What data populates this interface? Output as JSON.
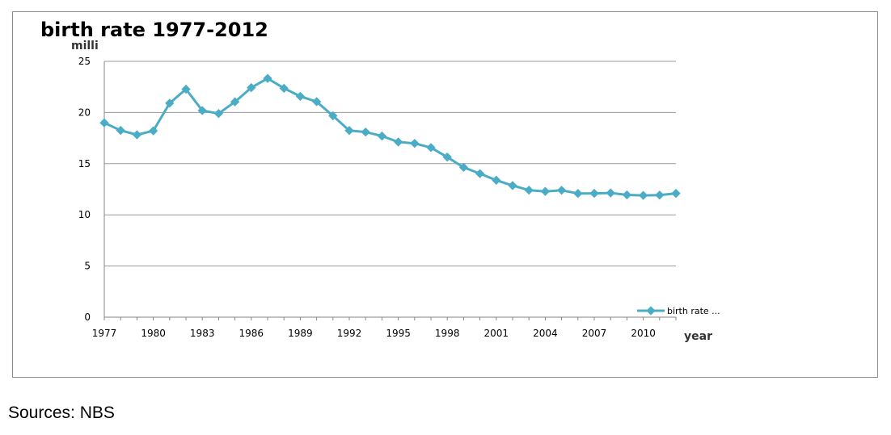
{
  "chart_data": {
    "type": "line",
    "title": "birth rate 1977-2012",
    "ylabel": "milli",
    "xlabel": "year",
    "ylim": [
      0,
      25
    ],
    "yticks": [
      0,
      5,
      10,
      15,
      20,
      25
    ],
    "xlim": [
      1977,
      2012
    ],
    "xticks": [
      1977,
      1980,
      1983,
      1986,
      1989,
      1992,
      1995,
      1998,
      2001,
      2004,
      2007,
      2010
    ],
    "grid": "horizontal",
    "legend_position": "bottom-right",
    "series": [
      {
        "name": "birth rate ...",
        "color": "#4bacc6",
        "marker": "diamond",
        "x": [
          1977,
          1978,
          1979,
          1980,
          1981,
          1982,
          1983,
          1984,
          1985,
          1986,
          1987,
          1988,
          1989,
          1990,
          1991,
          1992,
          1993,
          1994,
          1995,
          1996,
          1997,
          1998,
          1999,
          2000,
          2001,
          2002,
          2003,
          2004,
          2005,
          2006,
          2007,
          2008,
          2009,
          2010,
          2011,
          2012
        ],
        "values": [
          18.99,
          18.25,
          17.82,
          18.21,
          20.91,
          22.28,
          20.19,
          19.9,
          21.04,
          22.43,
          23.33,
          22.37,
          21.58,
          21.06,
          19.68,
          18.24,
          18.09,
          17.7,
          17.12,
          16.98,
          16.57,
          15.64,
          14.64,
          14.03,
          13.38,
          12.86,
          12.41,
          12.29,
          12.4,
          12.09,
          12.1,
          12.14,
          11.95,
          11.9,
          11.93,
          12.1
        ]
      }
    ]
  },
  "source_note": "Sources: NBS"
}
